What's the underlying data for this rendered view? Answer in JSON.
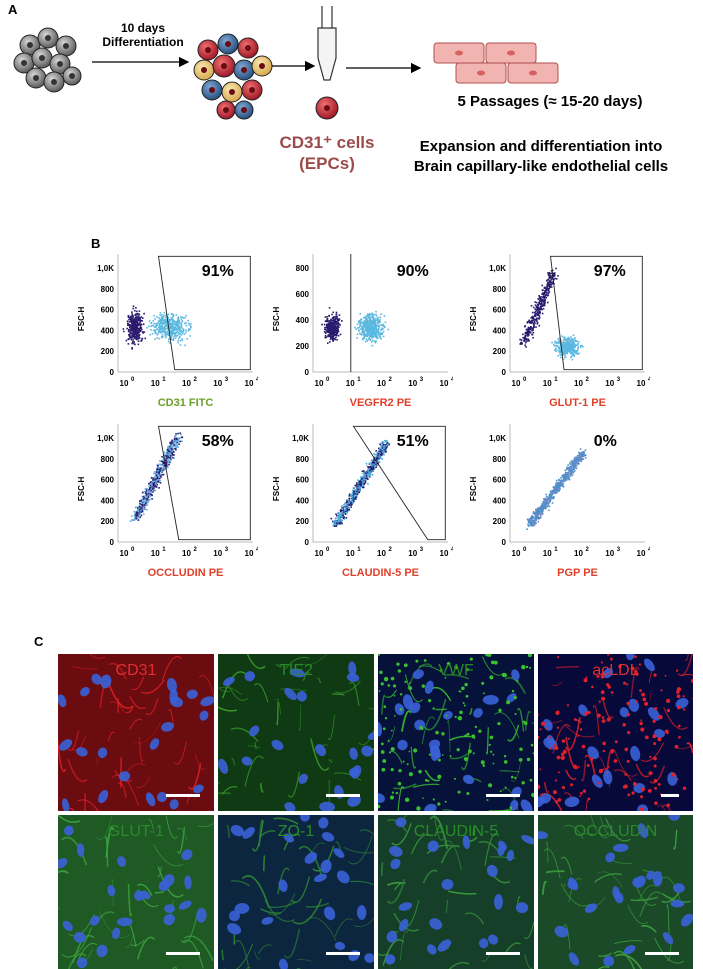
{
  "panel_a": {
    "letter": "A",
    "step1_line1": "10 days",
    "step1_line2": "Differentiation",
    "cd31_line1": "CD31⁺ cells",
    "cd31_line2": "(EPCs)",
    "passages": "5 Passages (≈ 15-20 days)",
    "expansion_line1": "Expansion and differentiation into",
    "expansion_line2": "Brain capillary-like endothelial cells",
    "colors": {
      "cell_red": "#c8344a",
      "cell_blue": "#3d6e9e",
      "cell_yellow": "#e8c46a",
      "endo_pink": "#f2b4b0",
      "label_red": "#9c4a4a"
    }
  },
  "panel_b": {
    "letter": "B",
    "y_axis_label": "FSC-H",
    "plots": [
      {
        "marker": "CD31 FITC",
        "percent": "91%",
        "color": "#6a9e2a",
        "y_ticks": [
          "1,0K",
          "800",
          "600",
          "400",
          "200",
          "0"
        ]
      },
      {
        "marker": "VEGFR2 PE",
        "percent": "90%",
        "color": "#e0402a",
        "y_ticks": [
          "800",
          "600",
          "400",
          "200",
          "0"
        ]
      },
      {
        "marker": "GLUT-1 PE",
        "percent": "97%",
        "color": "#e0402a",
        "y_ticks": [
          "1,0K",
          "800",
          "600",
          "400",
          "200",
          "0"
        ]
      },
      {
        "marker": "OCCLUDIN PE",
        "percent": "58%",
        "color": "#e0402a",
        "y_ticks": [
          "1,0K",
          "800",
          "600",
          "400",
          "200",
          "0"
        ]
      },
      {
        "marker": "CLAUDIN-5 PE",
        "percent": "51%",
        "color": "#e0402a",
        "y_ticks": [
          "1,0K",
          "800",
          "600",
          "400",
          "200",
          "0"
        ]
      },
      {
        "marker": "PGP PE",
        "percent": "0%",
        "color": "#e0402a",
        "y_ticks": [
          "1,0K",
          "800",
          "600",
          "400",
          "200",
          "0"
        ]
      }
    ],
    "x_ticks": [
      "10",
      "10",
      "10",
      "10",
      "10"
    ],
    "x_exps": [
      "0",
      "1",
      "2",
      "3",
      "4"
    ]
  },
  "panel_c": {
    "letter": "C",
    "images": [
      {
        "label": "CD31",
        "label_color": "#e03030",
        "bg": "#6a0c10",
        "fiber": "#d81f24"
      },
      {
        "label": "TIE2",
        "label_color": "#2a8a2a",
        "bg": "#0f3a14",
        "fiber": "#3a9a2a"
      },
      {
        "label": "VWF",
        "label_color": "#2a8a2a",
        "bg": "#06123a",
        "fiber": "#38c030"
      },
      {
        "label": "acLDL",
        "label_color": "#e03030",
        "bg": "#07093a",
        "fiber": "#e0202a"
      },
      {
        "label": "GLUT-1",
        "label_color": "#2a8a2a",
        "bg": "#1f5a24",
        "fiber": "#3aa040"
      },
      {
        "label": "ZO-1",
        "label_color": "#2a8a2a",
        "bg": "#0d2640",
        "fiber": "#2e8a30"
      },
      {
        "label": "CLAUDIN-5",
        "label_color": "#2a8a2a",
        "bg": "#153f28",
        "fiber": "#3a9a40"
      },
      {
        "label": "OCCLUDIN",
        "label_color": "#2a8a2a",
        "bg": "#1a4a28",
        "fiber": "#3ea040"
      }
    ],
    "nuclei_color": "#3a62d8"
  }
}
